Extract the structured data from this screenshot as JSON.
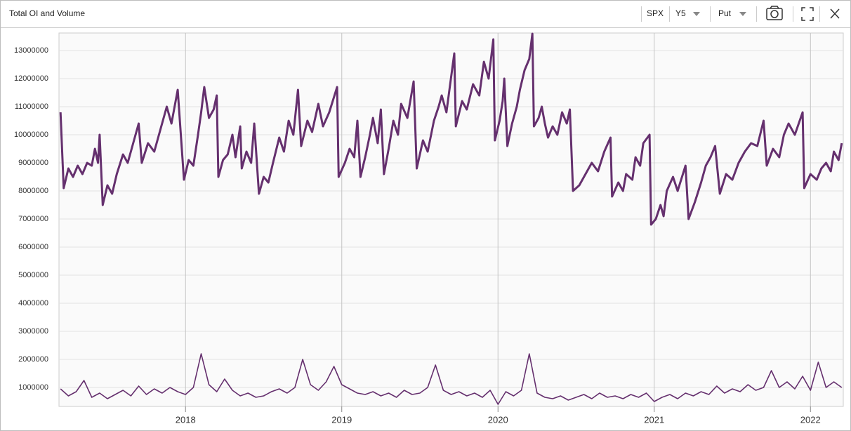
{
  "header": {
    "title": "Total OI and Volume",
    "controls": [
      "SPX",
      "Y5",
      "Put"
    ]
  },
  "chart_data": {
    "type": "line",
    "xlim": [
      2017.19,
      2022.21
    ],
    "xticks": [
      2018,
      2019,
      2020,
      2021,
      2022
    ],
    "ylim": [
      325000,
      13625000
    ],
    "yticks": [
      1000000,
      2000000,
      3000000,
      4000000,
      5000000,
      6000000,
      7000000,
      8000000,
      9000000,
      10000000,
      11000000,
      12000000,
      13000000
    ],
    "grid": true,
    "series": [
      {
        "color": "#65306e",
        "width": 3,
        "x": [
          2017.2,
          2017.22,
          2017.25,
          2017.28,
          2017.31,
          2017.34,
          2017.37,
          2017.4,
          2017.42,
          2017.44,
          2017.45,
          2017.47,
          2017.5,
          2017.53,
          2017.56,
          2017.6,
          2017.63,
          2017.67,
          2017.7,
          2017.72,
          2017.76,
          2017.8,
          2017.84,
          2017.88,
          2017.91,
          2017.95,
          2017.99,
          2018.02,
          2018.05,
          2018.08,
          2018.1,
          2018.12,
          2018.15,
          2018.18,
          2018.2,
          2018.21,
          2018.24,
          2018.27,
          2018.3,
          2018.32,
          2018.35,
          2018.36,
          2018.39,
          2018.42,
          2018.44,
          2018.47,
          2018.5,
          2018.53,
          2018.56,
          2018.6,
          2018.63,
          2018.66,
          2018.69,
          2018.72,
          2018.74,
          2018.78,
          2018.81,
          2018.85,
          2018.88,
          2018.92,
          2018.97,
          2018.98,
          2019.02,
          2019.05,
          2019.08,
          2019.1,
          2019.12,
          2019.15,
          2019.18,
          2019.2,
          2019.23,
          2019.25,
          2019.27,
          2019.3,
          2019.33,
          2019.36,
          2019.38,
          2019.42,
          2019.46,
          2019.48,
          2019.52,
          2019.55,
          2019.59,
          2019.62,
          2019.64,
          2019.67,
          2019.72,
          2019.73,
          2019.77,
          2019.8,
          2019.84,
          2019.88,
          2019.91,
          2019.94,
          2019.97,
          2019.98,
          2020.01,
          2020.03,
          2020.04,
          2020.06,
          2020.09,
          2020.12,
          2020.14,
          2020.17,
          2020.2,
          2020.22,
          2020.23,
          2020.26,
          2020.28,
          2020.3,
          2020.32,
          2020.35,
          2020.38,
          2020.41,
          2020.44,
          2020.46,
          2020.48,
          2020.52,
          2020.56,
          2020.6,
          2020.64,
          2020.68,
          2020.72,
          2020.73,
          2020.77,
          2020.8,
          2020.82,
          2020.86,
          2020.88,
          2020.91,
          2020.93,
          2020.97,
          2020.98,
          2021.01,
          2021.04,
          2021.06,
          2021.08,
          2021.12,
          2021.15,
          2021.2,
          2021.22,
          2021.26,
          2021.3,
          2021.33,
          2021.36,
          2021.39,
          2021.42,
          2021.46,
          2021.5,
          2021.54,
          2021.58,
          2021.62,
          2021.66,
          2021.7,
          2021.72,
          2021.76,
          2021.8,
          2021.83,
          2021.86,
          2021.9,
          2021.95,
          2021.96,
          2022.0,
          2022.04,
          2022.07,
          2022.1,
          2022.13,
          2022.15,
          2022.18,
          2022.2
        ],
        "values": [
          10800000,
          8100000,
          8800000,
          8500000,
          8900000,
          8600000,
          9000000,
          8900000,
          9500000,
          9000000,
          10000000,
          7500000,
          8200000,
          7900000,
          8600000,
          9300000,
          9000000,
          9800000,
          10400000,
          9000000,
          9700000,
          9400000,
          10200000,
          11000000,
          10400000,
          11600000,
          8400000,
          9100000,
          8900000,
          10000000,
          10800000,
          11700000,
          10600000,
          10900000,
          11400000,
          8500000,
          9100000,
          9300000,
          10000000,
          9200000,
          10300000,
          8800000,
          9400000,
          9000000,
          10400000,
          7900000,
          8500000,
          8300000,
          9000000,
          9900000,
          9400000,
          10500000,
          10000000,
          11600000,
          9600000,
          10500000,
          10100000,
          11100000,
          10300000,
          10800000,
          11700000,
          8500000,
          9000000,
          9500000,
          9200000,
          10500000,
          8500000,
          9200000,
          10000000,
          10600000,
          9700000,
          10900000,
          8600000,
          9500000,
          10500000,
          10000000,
          11100000,
          10600000,
          11900000,
          8800000,
          9800000,
          9400000,
          10500000,
          11000000,
          11400000,
          10800000,
          12900000,
          10300000,
          11200000,
          10900000,
          11800000,
          11400000,
          12600000,
          12000000,
          13400000,
          9800000,
          10500000,
          11200000,
          12000000,
          9600000,
          10400000,
          11000000,
          11600000,
          12300000,
          12700000,
          13600000,
          10300000,
          10600000,
          11000000,
          10400000,
          9900000,
          10300000,
          10000000,
          10800000,
          10400000,
          10900000,
          8000000,
          8200000,
          8600000,
          9000000,
          8700000,
          9400000,
          9900000,
          7800000,
          8300000,
          8000000,
          8600000,
          8400000,
          9200000,
          8900000,
          9700000,
          10000000,
          6800000,
          7000000,
          7500000,
          7100000,
          8000000,
          8500000,
          8000000,
          8900000,
          7000000,
          7600000,
          8300000,
          8900000,
          9200000,
          9600000,
          7900000,
          8600000,
          8400000,
          9000000,
          9400000,
          9700000,
          9600000,
          10500000,
          8900000,
          9500000,
          9200000,
          10000000,
          10400000,
          10000000,
          10800000,
          8100000,
          8600000,
          8400000,
          8800000,
          9000000,
          8700000,
          9400000,
          9100000,
          9700000
        ]
      },
      {
        "color": "#65306e",
        "width": 1.6,
        "x": [
          2017.2,
          2017.25,
          2017.3,
          2017.35,
          2017.4,
          2017.45,
          2017.5,
          2017.55,
          2017.6,
          2017.65,
          2017.7,
          2017.75,
          2017.8,
          2017.85,
          2017.9,
          2017.95,
          2018.0,
          2018.05,
          2018.1,
          2018.15,
          2018.2,
          2018.25,
          2018.3,
          2018.35,
          2018.4,
          2018.45,
          2018.5,
          2018.55,
          2018.6,
          2018.65,
          2018.7,
          2018.75,
          2018.8,
          2018.85,
          2018.9,
          2018.95,
          2019.0,
          2019.05,
          2019.1,
          2019.15,
          2019.2,
          2019.25,
          2019.3,
          2019.35,
          2019.4,
          2019.45,
          2019.5,
          2019.55,
          2019.6,
          2019.65,
          2019.7,
          2019.75,
          2019.8,
          2019.85,
          2019.9,
          2019.95,
          2020.0,
          2020.05,
          2020.1,
          2020.15,
          2020.2,
          2020.25,
          2020.3,
          2020.35,
          2020.4,
          2020.45,
          2020.5,
          2020.55,
          2020.6,
          2020.65,
          2020.7,
          2020.75,
          2020.8,
          2020.85,
          2020.9,
          2020.95,
          2021.0,
          2021.05,
          2021.1,
          2021.15,
          2021.2,
          2021.25,
          2021.3,
          2021.35,
          2021.4,
          2021.45,
          2021.5,
          2021.55,
          2021.6,
          2021.65,
          2021.7,
          2021.75,
          2021.8,
          2021.85,
          2021.9,
          2021.95,
          2022.0,
          2022.05,
          2022.1,
          2022.15,
          2022.2
        ],
        "values": [
          950000,
          700000,
          850000,
          1250000,
          650000,
          800000,
          600000,
          750000,
          900000,
          700000,
          1050000,
          750000,
          950000,
          800000,
          1000000,
          850000,
          750000,
          1000000,
          2200000,
          1100000,
          850000,
          1300000,
          900000,
          700000,
          800000,
          650000,
          700000,
          850000,
          950000,
          800000,
          1000000,
          2000000,
          1100000,
          900000,
          1200000,
          1750000,
          1100000,
          950000,
          800000,
          750000,
          850000,
          700000,
          800000,
          650000,
          900000,
          750000,
          800000,
          1000000,
          1800000,
          900000,
          750000,
          850000,
          700000,
          800000,
          650000,
          900000,
          400000,
          850000,
          700000,
          900000,
          2200000,
          800000,
          650000,
          600000,
          700000,
          550000,
          650000,
          750000,
          600000,
          800000,
          650000,
          700000,
          600000,
          750000,
          650000,
          800000,
          500000,
          650000,
          750000,
          600000,
          800000,
          700000,
          850000,
          750000,
          1050000,
          800000,
          950000,
          850000,
          1100000,
          900000,
          1000000,
          1600000,
          1000000,
          1200000,
          950000,
          1400000,
          900000,
          1900000,
          1000000,
          1200000,
          1000000
        ]
      }
    ]
  }
}
